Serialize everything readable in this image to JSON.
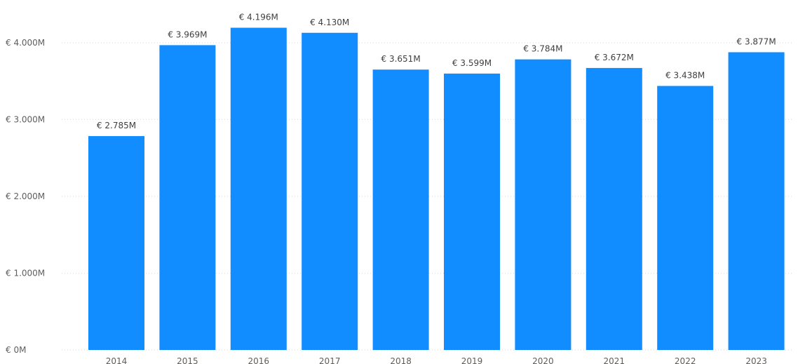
{
  "chart_data": {
    "type": "bar",
    "title": "",
    "xlabel": "",
    "ylabel": "",
    "categories": [
      "2014",
      "2015",
      "2016",
      "2017",
      "2018",
      "2019",
      "2020",
      "2021",
      "2022",
      "2023"
    ],
    "values": [
      2.785,
      3.969,
      4.196,
      4.13,
      3.651,
      3.599,
      3.784,
      3.672,
      3.438,
      3.877
    ],
    "data_labels": [
      "€ 2.785M",
      "€ 3.969M",
      "€ 4.196M",
      "€ 4.130M",
      "€ 3.651M",
      "€ 3.599M",
      "€ 3.784M",
      "€ 3.672M",
      "€ 3.438M",
      "€ 3.877M"
    ],
    "ylim": [
      0,
      4
    ],
    "y_ticks": [
      0,
      1,
      2,
      3,
      4
    ],
    "y_tick_labels": [
      "€ 0M",
      "€ 1.000M",
      "€ 2.000M",
      "€ 3.000M",
      "€ 4.000M"
    ],
    "grid": true,
    "bar_color": "#118dff",
    "legend": "none"
  }
}
